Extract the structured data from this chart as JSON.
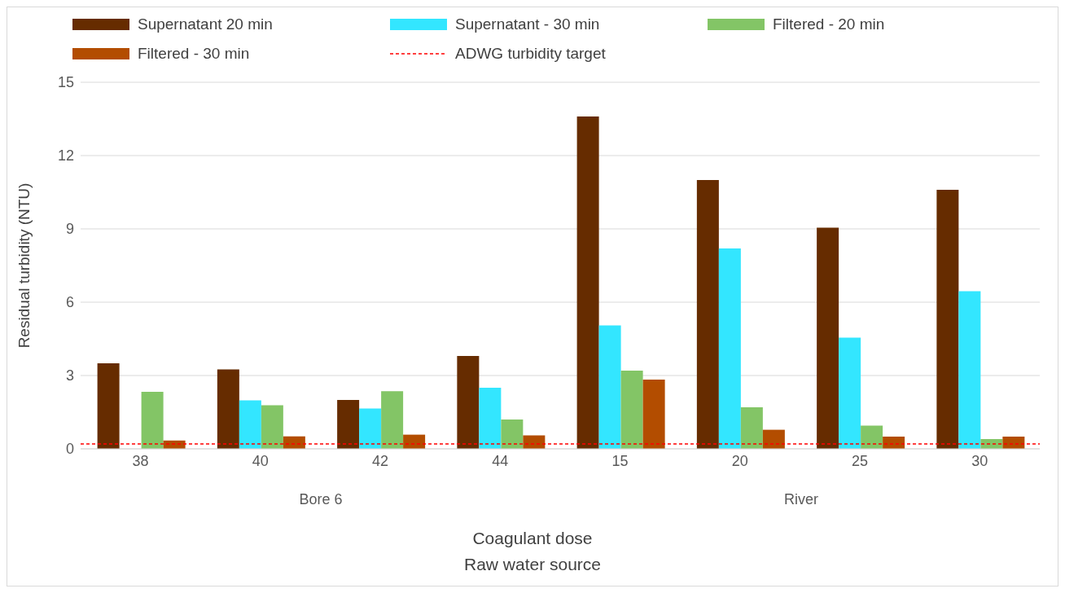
{
  "chart_data": {
    "type": "bar",
    "ylabel": "Residual turbidity (NTU)",
    "xlabel": "Coagulant dose",
    "annotations": [
      "Bore 6",
      "River",
      "Raw water source"
    ],
    "categories": [
      "38",
      "40",
      "42",
      "44",
      "15",
      "20",
      "25",
      "30"
    ],
    "series": [
      {
        "name": "Supernatant 20 min",
        "color": "#662c00",
        "values": [
          3.5,
          3.25,
          2.0,
          3.8,
          13.6,
          11.0,
          9.05,
          10.6
        ]
      },
      {
        "name": "Supernatant - 30 min",
        "color": "#33e6ff",
        "values": [
          null,
          1.98,
          1.65,
          2.5,
          5.05,
          8.2,
          4.55,
          6.45
        ]
      },
      {
        "name": "Filtered - 20 min",
        "color": "#83c566",
        "values": [
          2.33,
          1.78,
          2.36,
          1.2,
          3.2,
          1.7,
          0.95,
          0.4
        ]
      },
      {
        "name": "Filtered - 30 min",
        "color": "#b34d00",
        "values": [
          0.34,
          0.51,
          0.58,
          0.55,
          2.83,
          0.78,
          0.5,
          0.5
        ]
      }
    ],
    "ref_lines": [
      {
        "axis": "y",
        "value": 0.2,
        "label": "ADWG turbidity target",
        "color": "#ff0000",
        "line_style": "dashed"
      }
    ],
    "ylim": [
      0,
      15
    ],
    "yticks": [
      0,
      3,
      6,
      9,
      12,
      15
    ],
    "grid": "y",
    "legend": "top"
  }
}
